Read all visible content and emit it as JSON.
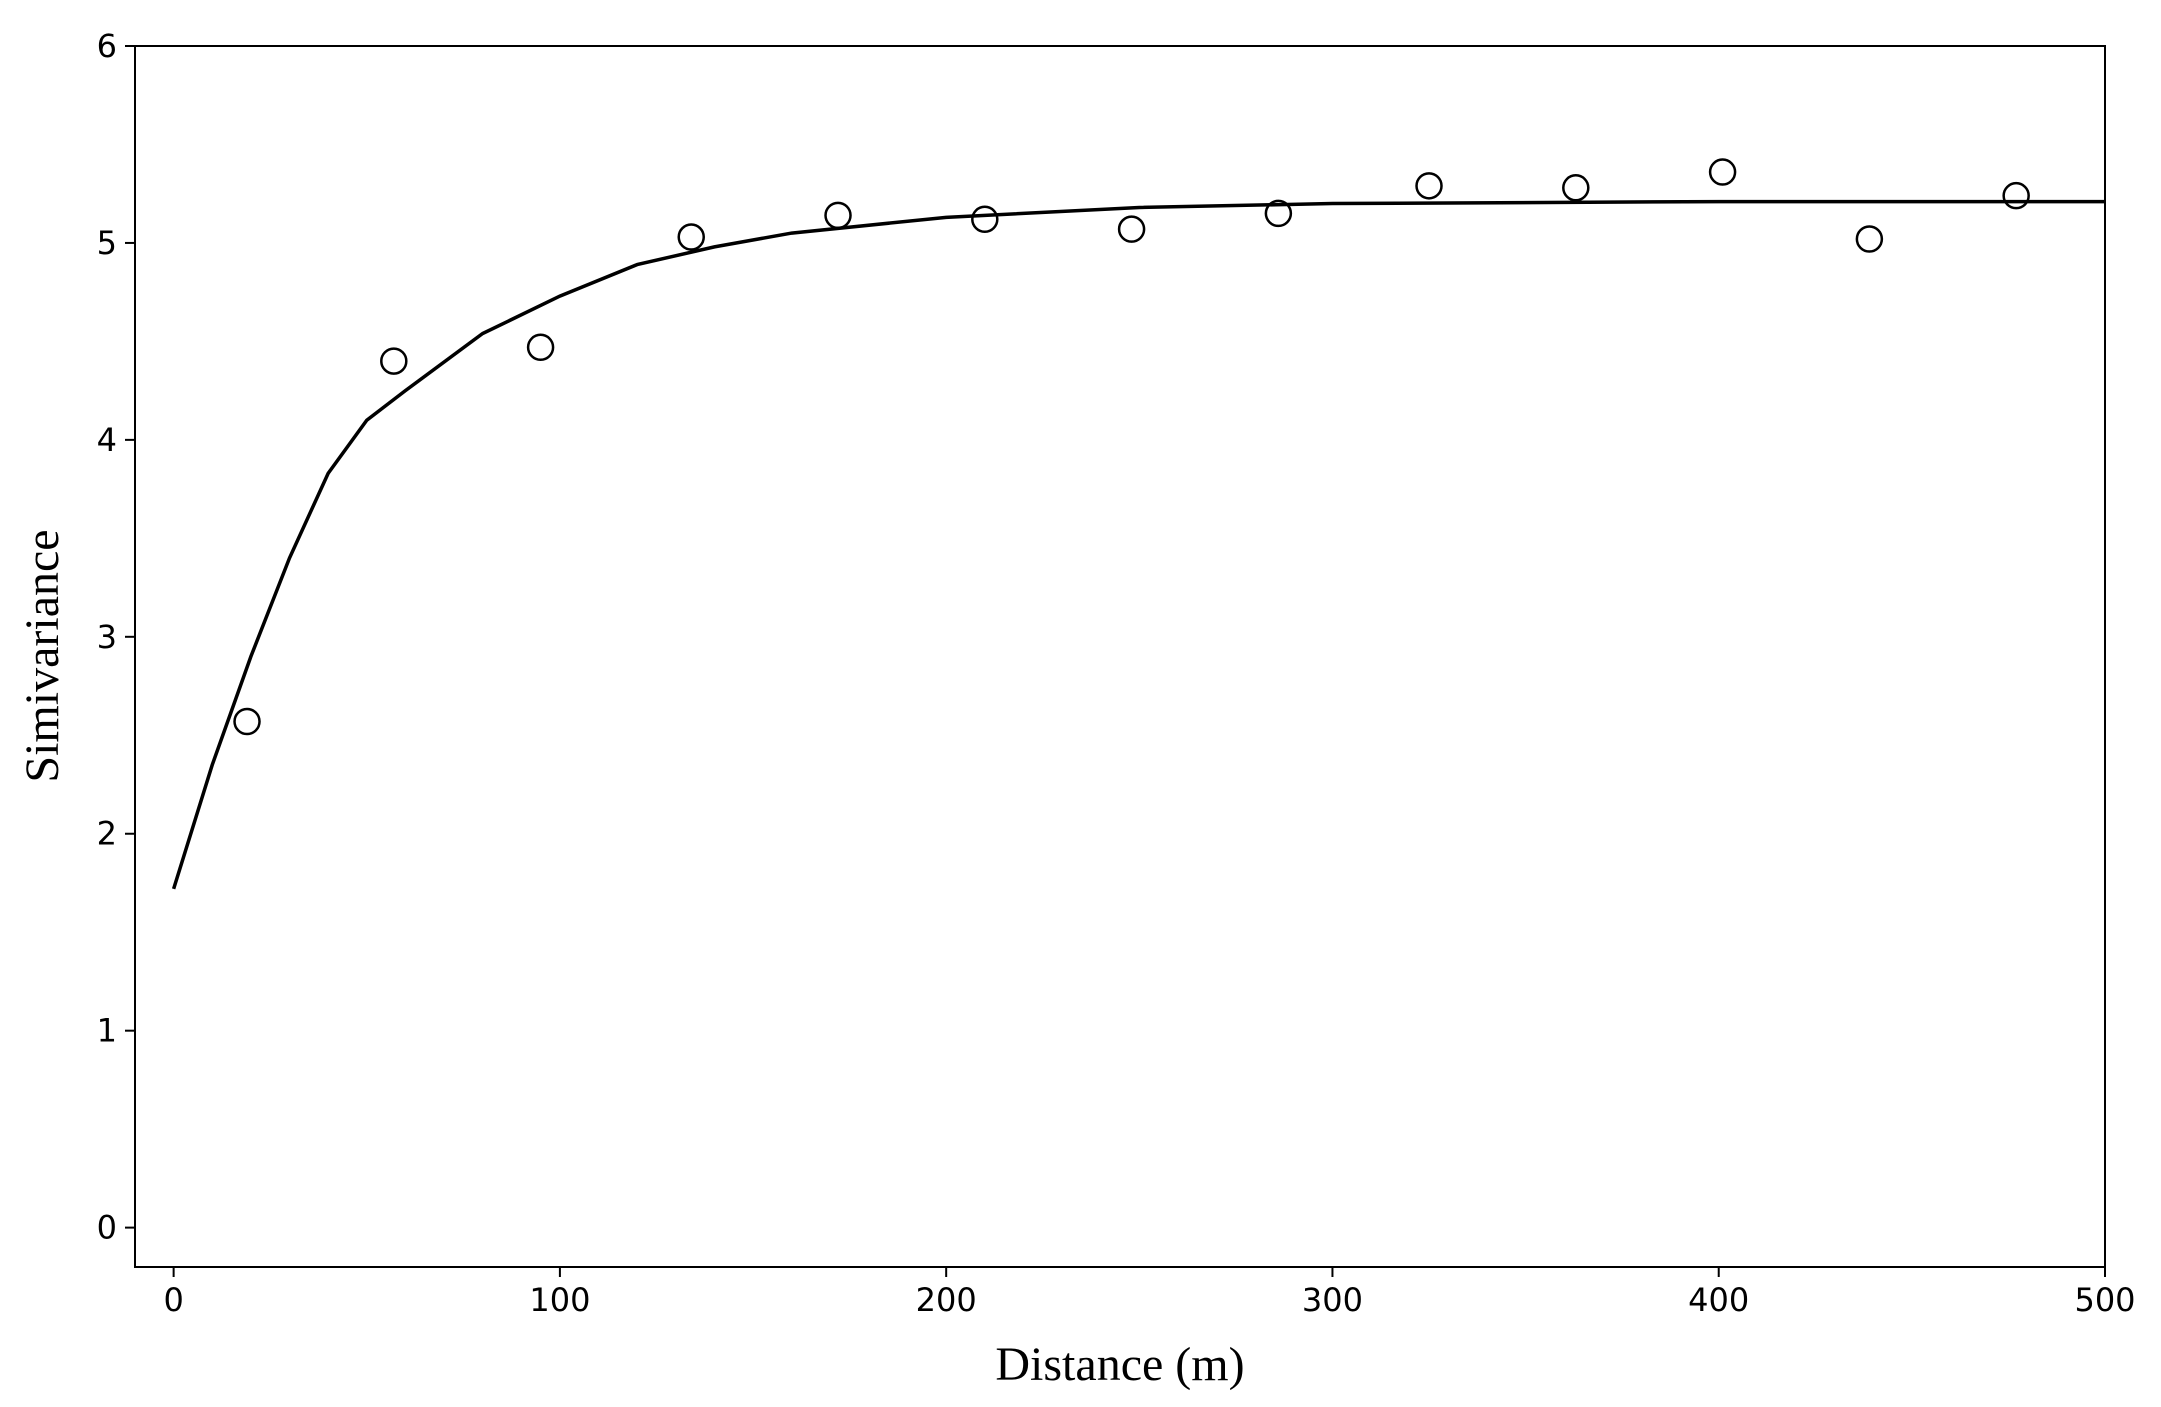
{
  "chart_data": {
    "type": "scatter",
    "x_label": "Distance (m)",
    "y_label": "Simivariance",
    "xlim": [
      -10,
      500
    ],
    "ylim": [
      -0.2,
      6
    ],
    "xticks": [
      0,
      100,
      200,
      300,
      400,
      500
    ],
    "yticks": [
      0,
      1,
      2,
      3,
      4,
      5,
      6
    ],
    "series": [
      {
        "style": "markers",
        "color": "#000000",
        "x": [
          19,
          57,
          95,
          134,
          172,
          210,
          248,
          286,
          325,
          363,
          401,
          439,
          477
        ],
        "values": [
          2.57,
          4.4,
          4.47,
          5.03,
          5.14,
          5.12,
          5.07,
          5.15,
          5.29,
          5.28,
          5.36,
          5.02,
          5.24
        ]
      },
      {
        "style": "line",
        "color": "#000000",
        "x": [
          0,
          10,
          20,
          30,
          40,
          50,
          60,
          80,
          100,
          120,
          140,
          160,
          200,
          250,
          300,
          400,
          500
        ],
        "values": [
          1.72,
          2.35,
          2.9,
          3.4,
          3.83,
          4.1,
          4.25,
          4.54,
          4.73,
          4.89,
          4.98,
          5.05,
          5.13,
          5.18,
          5.2,
          5.21,
          5.21
        ]
      }
    ]
  }
}
